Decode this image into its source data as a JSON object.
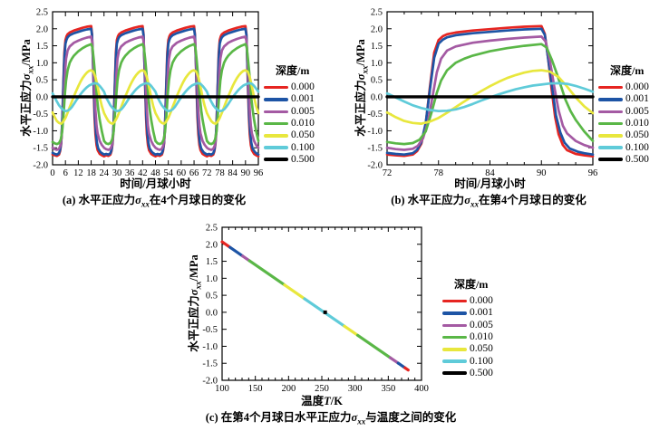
{
  "colors": {
    "red": "#e62521",
    "blue": "#1d54a5",
    "purple": "#a45aa3",
    "green": "#5ab747",
    "yellow": "#e8e73d",
    "cyan": "#5fcbd9",
    "black": "#000000"
  },
  "legend": {
    "title": "深度/m",
    "entries": [
      {
        "label": "0.000",
        "color": "red"
      },
      {
        "label": "0.001",
        "color": "blue"
      },
      {
        "label": "0.005",
        "color": "purple"
      },
      {
        "label": "0.010",
        "color": "green"
      },
      {
        "label": "0.050",
        "color": "yellow"
      },
      {
        "label": "0.100",
        "color": "cyan"
      },
      {
        "label": "0.500",
        "color": "black"
      }
    ]
  },
  "labels": {
    "ylabel": {
      "pre": "水平正应力",
      "sigma": "σ",
      "sub": "xx",
      "post": "/MPa"
    },
    "xlabel_time": "时间/月球小时",
    "xlabel_temp": {
      "pre": "温度",
      "italic": "T",
      "post": "/K"
    },
    "captions": {
      "a": {
        "pre": "(a) 水平正应力",
        "sigma": "σ",
        "sub": "xx",
        "post": "在4个月球日的变化"
      },
      "b": {
        "pre": "(b) 水平正应力",
        "sigma": "σ",
        "sub": "xx",
        "post": "在第4个月球日的变化"
      },
      "c": {
        "pre": "(c) 在第4个月球日水平正应力",
        "sigma": "σ",
        "sub": "xx",
        "post": "与温度之间的变化"
      }
    }
  },
  "lunar_day_series": [
    {
      "name": "depth 0.000 m",
      "depth": "0.000",
      "color": "red",
      "points": [
        [
          72,
          -1.7
        ],
        [
          73,
          -1.72
        ],
        [
          74,
          -1.74
        ],
        [
          75,
          -1.7
        ],
        [
          75.5,
          -1.6
        ],
        [
          76,
          -1.38
        ],
        [
          76.5,
          -0.8
        ],
        [
          77,
          0.3
        ],
        [
          77.5,
          1.3
        ],
        [
          78,
          1.67
        ],
        [
          78.5,
          1.78
        ],
        [
          79,
          1.84
        ],
        [
          80,
          1.89
        ],
        [
          82,
          1.95
        ],
        [
          84,
          1.99
        ],
        [
          86,
          2.03
        ],
        [
          88,
          2.06
        ],
        [
          90,
          2.08
        ],
        [
          90.4,
          1.85
        ],
        [
          90.8,
          1.1
        ],
        [
          91.2,
          0.2
        ],
        [
          91.6,
          -0.6
        ],
        [
          92,
          -1.1
        ],
        [
          92.5,
          -1.42
        ],
        [
          93,
          -1.57
        ],
        [
          94,
          -1.68
        ],
        [
          95,
          -1.72
        ],
        [
          96,
          -1.75
        ]
      ]
    },
    {
      "name": "depth 0.001 m",
      "depth": "0.001",
      "color": "blue",
      "points": [
        [
          72,
          -1.65
        ],
        [
          73,
          -1.68
        ],
        [
          74,
          -1.7
        ],
        [
          75,
          -1.66
        ],
        [
          75.5,
          -1.56
        ],
        [
          76,
          -1.34
        ],
        [
          76.5,
          -0.78
        ],
        [
          77,
          0.22
        ],
        [
          77.5,
          1.15
        ],
        [
          78,
          1.56
        ],
        [
          78.5,
          1.68
        ],
        [
          79,
          1.75
        ],
        [
          80,
          1.81
        ],
        [
          82,
          1.87
        ],
        [
          84,
          1.91
        ],
        [
          86,
          1.95
        ],
        [
          88,
          1.98
        ],
        [
          90,
          2.0
        ],
        [
          90.4,
          1.82
        ],
        [
          90.8,
          1.1
        ],
        [
          91.3,
          0.2
        ],
        [
          91.7,
          -0.55
        ],
        [
          92.2,
          -1.05
        ],
        [
          92.7,
          -1.35
        ],
        [
          93.3,
          -1.52
        ],
        [
          94.3,
          -1.62
        ],
        [
          95,
          -1.66
        ],
        [
          96,
          -1.7
        ]
      ]
    },
    {
      "name": "depth 0.005 m",
      "depth": "0.005",
      "color": "purple",
      "points": [
        [
          72,
          -1.5
        ],
        [
          73,
          -1.54
        ],
        [
          74,
          -1.56
        ],
        [
          75,
          -1.53
        ],
        [
          75.6,
          -1.44
        ],
        [
          76.2,
          -1.22
        ],
        [
          76.8,
          -0.7
        ],
        [
          77.3,
          0.0
        ],
        [
          77.8,
          0.72
        ],
        [
          78.3,
          1.12
        ],
        [
          79,
          1.36
        ],
        [
          80,
          1.48
        ],
        [
          82,
          1.59
        ],
        [
          84,
          1.65
        ],
        [
          86,
          1.7
        ],
        [
          88,
          1.74
        ],
        [
          90,
          1.77
        ],
        [
          90.5,
          1.62
        ],
        [
          91,
          1.05
        ],
        [
          91.5,
          0.3
        ],
        [
          92,
          -0.4
        ],
        [
          92.5,
          -0.85
        ],
        [
          93,
          -1.08
        ],
        [
          94,
          -1.3
        ],
        [
          95,
          -1.42
        ],
        [
          96,
          -1.5
        ]
      ]
    },
    {
      "name": "depth 0.010 m",
      "depth": "0.010",
      "color": "green",
      "points": [
        [
          72,
          -1.33
        ],
        [
          73,
          -1.37
        ],
        [
          74,
          -1.39
        ],
        [
          75,
          -1.36
        ],
        [
          75.8,
          -1.26
        ],
        [
          76.5,
          -1.02
        ],
        [
          77.2,
          -0.45
        ],
        [
          77.8,
          0.12
        ],
        [
          78.3,
          0.48
        ],
        [
          79,
          0.78
        ],
        [
          80,
          1.0
        ],
        [
          81,
          1.12
        ],
        [
          82,
          1.21
        ],
        [
          84,
          1.34
        ],
        [
          86,
          1.43
        ],
        [
          88,
          1.5
        ],
        [
          90,
          1.55
        ],
        [
          90.6,
          1.45
        ],
        [
          91.2,
          1.1
        ],
        [
          91.8,
          0.68
        ],
        [
          92.3,
          0.3
        ],
        [
          92.8,
          -0.08
        ],
        [
          93.4,
          -0.42
        ],
        [
          94,
          -0.68
        ],
        [
          95,
          -1.02
        ],
        [
          96,
          -1.3
        ]
      ]
    },
    {
      "name": "depth 0.050 m",
      "depth": "0.050",
      "color": "yellow",
      "points": [
        [
          72,
          -0.46
        ],
        [
          73,
          -0.6
        ],
        [
          74,
          -0.71
        ],
        [
          75,
          -0.77
        ],
        [
          76,
          -0.79
        ],
        [
          77,
          -0.73
        ],
        [
          78,
          -0.62
        ],
        [
          79,
          -0.47
        ],
        [
          80,
          -0.3
        ],
        [
          81,
          -0.14
        ],
        [
          82,
          0.02
        ],
        [
          83,
          0.17
        ],
        [
          84,
          0.31
        ],
        [
          85,
          0.44
        ],
        [
          86,
          0.55
        ],
        [
          87,
          0.64
        ],
        [
          88,
          0.71
        ],
        [
          89,
          0.76
        ],
        [
          90,
          0.78
        ],
        [
          91,
          0.74
        ],
        [
          92,
          0.58
        ],
        [
          93,
          0.3
        ],
        [
          94,
          -0.02
        ],
        [
          95,
          -0.28
        ],
        [
          96,
          -0.48
        ]
      ]
    },
    {
      "name": "depth 0.100 m",
      "depth": "0.100",
      "color": "cyan",
      "points": [
        [
          72,
          0.1
        ],
        [
          73,
          -0.02
        ],
        [
          74,
          -0.14
        ],
        [
          75,
          -0.25
        ],
        [
          76,
          -0.33
        ],
        [
          77,
          -0.39
        ],
        [
          78,
          -0.42
        ],
        [
          79,
          -0.41
        ],
        [
          80,
          -0.37
        ],
        [
          81,
          -0.3
        ],
        [
          82,
          -0.21
        ],
        [
          83,
          -0.11
        ],
        [
          84,
          -0.02
        ],
        [
          85,
          0.07
        ],
        [
          86,
          0.15
        ],
        [
          87,
          0.22
        ],
        [
          88,
          0.28
        ],
        [
          89,
          0.33
        ],
        [
          90,
          0.36
        ],
        [
          91,
          0.39
        ],
        [
          92,
          0.4
        ],
        [
          93,
          0.38
        ],
        [
          94,
          0.32
        ],
        [
          95,
          0.24
        ],
        [
          96,
          0.15
        ]
      ]
    },
    {
      "name": "depth 0.500 m",
      "depth": "0.500",
      "color": "black",
      "points": [
        [
          72,
          0
        ],
        [
          96,
          0
        ]
      ]
    }
  ],
  "chart_data": [
    {
      "id": "a",
      "type": "line",
      "title": "",
      "xlabel": "时间/月球小时",
      "ylabel": "水平正应力σxx/MPa",
      "caption": "(a) 水平正应力σxx在4个月球日的变化",
      "xlim": [
        0,
        96
      ],
      "ylim": [
        -2.0,
        2.5
      ],
      "xticks": [
        0,
        6,
        12,
        18,
        24,
        30,
        36,
        42,
        48,
        54,
        60,
        66,
        72,
        78,
        84,
        90,
        96
      ],
      "yticks": [
        -2.0,
        -1.5,
        -1.0,
        -0.5,
        0.0,
        0.5,
        1.0,
        1.5,
        2.0,
        2.5
      ],
      "grid": false,
      "legend_title": "深度/m",
      "legend_position": "right",
      "series_source": "lunar_day_series",
      "tile_from": 72,
      "tile_period": 24,
      "tile_count": 4,
      "note": "periodic: the lunar-day cycle repeats 4 times over 0-96 lunar hours"
    },
    {
      "id": "b",
      "type": "line",
      "title": "",
      "xlabel": "时间/月球小时",
      "ylabel": "水平正应力σxx/MPa",
      "caption": "(b) 水平正应力σxx在第4个月球日的变化",
      "xlim": [
        72,
        96
      ],
      "ylim": [
        -2.0,
        2.5
      ],
      "xticks": [
        72,
        78,
        84,
        90,
        96
      ],
      "xminor_step": 2,
      "yticks": [
        -2.0,
        -1.5,
        -1.0,
        -0.5,
        0.0,
        0.5,
        1.0,
        1.5,
        2.0,
        2.5
      ],
      "grid": false,
      "legend_title": "深度/m",
      "legend_position": "right",
      "series_source": "lunar_day_series"
    },
    {
      "id": "c",
      "type": "line",
      "title": "",
      "xlabel": "温度T/K",
      "ylabel": "水平正应力σxx/MPa",
      "caption": "(c) 在第4个月球日水平正应力σxx与温度之间的变化",
      "xlim": [
        100,
        400
      ],
      "ylim": [
        -2.0,
        2.5
      ],
      "xticks": [
        100,
        150,
        200,
        250,
        300,
        350,
        400
      ],
      "xminor_step": 10,
      "yticks": [
        -2.0,
        -1.5,
        -1.0,
        -0.5,
        0.0,
        0.5,
        1.0,
        1.5,
        2.0,
        2.5
      ],
      "grid": false,
      "legend_title": "深度/m",
      "legend_position": "right",
      "line_endpoints": {
        "T": [
          100,
          380
        ],
        "sigma": [
          2.07,
          -1.7
        ]
      },
      "segments": [
        {
          "depth": "0.000",
          "color": "red",
          "T_range": [
            100,
            112
          ]
        },
        {
          "depth": "0.001",
          "color": "blue",
          "T_range": [
            112,
            131
          ]
        },
        {
          "depth": "0.005",
          "color": "purple",
          "T_range": [
            131,
            141
          ]
        },
        {
          "depth": "0.010",
          "color": "green",
          "T_range": [
            141,
            194
          ]
        },
        {
          "depth": "0.050",
          "color": "yellow",
          "T_range": [
            194,
            224
          ]
        },
        {
          "depth": "0.100",
          "color": "cyan",
          "T_range": [
            224,
            284
          ]
        },
        {
          "depth": "0.050",
          "color": "yellow",
          "T_range": [
            284,
            304
          ]
        },
        {
          "depth": "0.010",
          "color": "green",
          "T_range": [
            304,
            353
          ]
        },
        {
          "depth": "0.005",
          "color": "purple",
          "T_range": [
            353,
            365
          ]
        },
        {
          "depth": "0.001",
          "color": "blue",
          "T_range": [
            365,
            375
          ]
        },
        {
          "depth": "0.000",
          "color": "red",
          "T_range": [
            375,
            380
          ]
        }
      ],
      "marker": {
        "depth": "0.500",
        "T": 255,
        "sigma": 0
      }
    }
  ]
}
